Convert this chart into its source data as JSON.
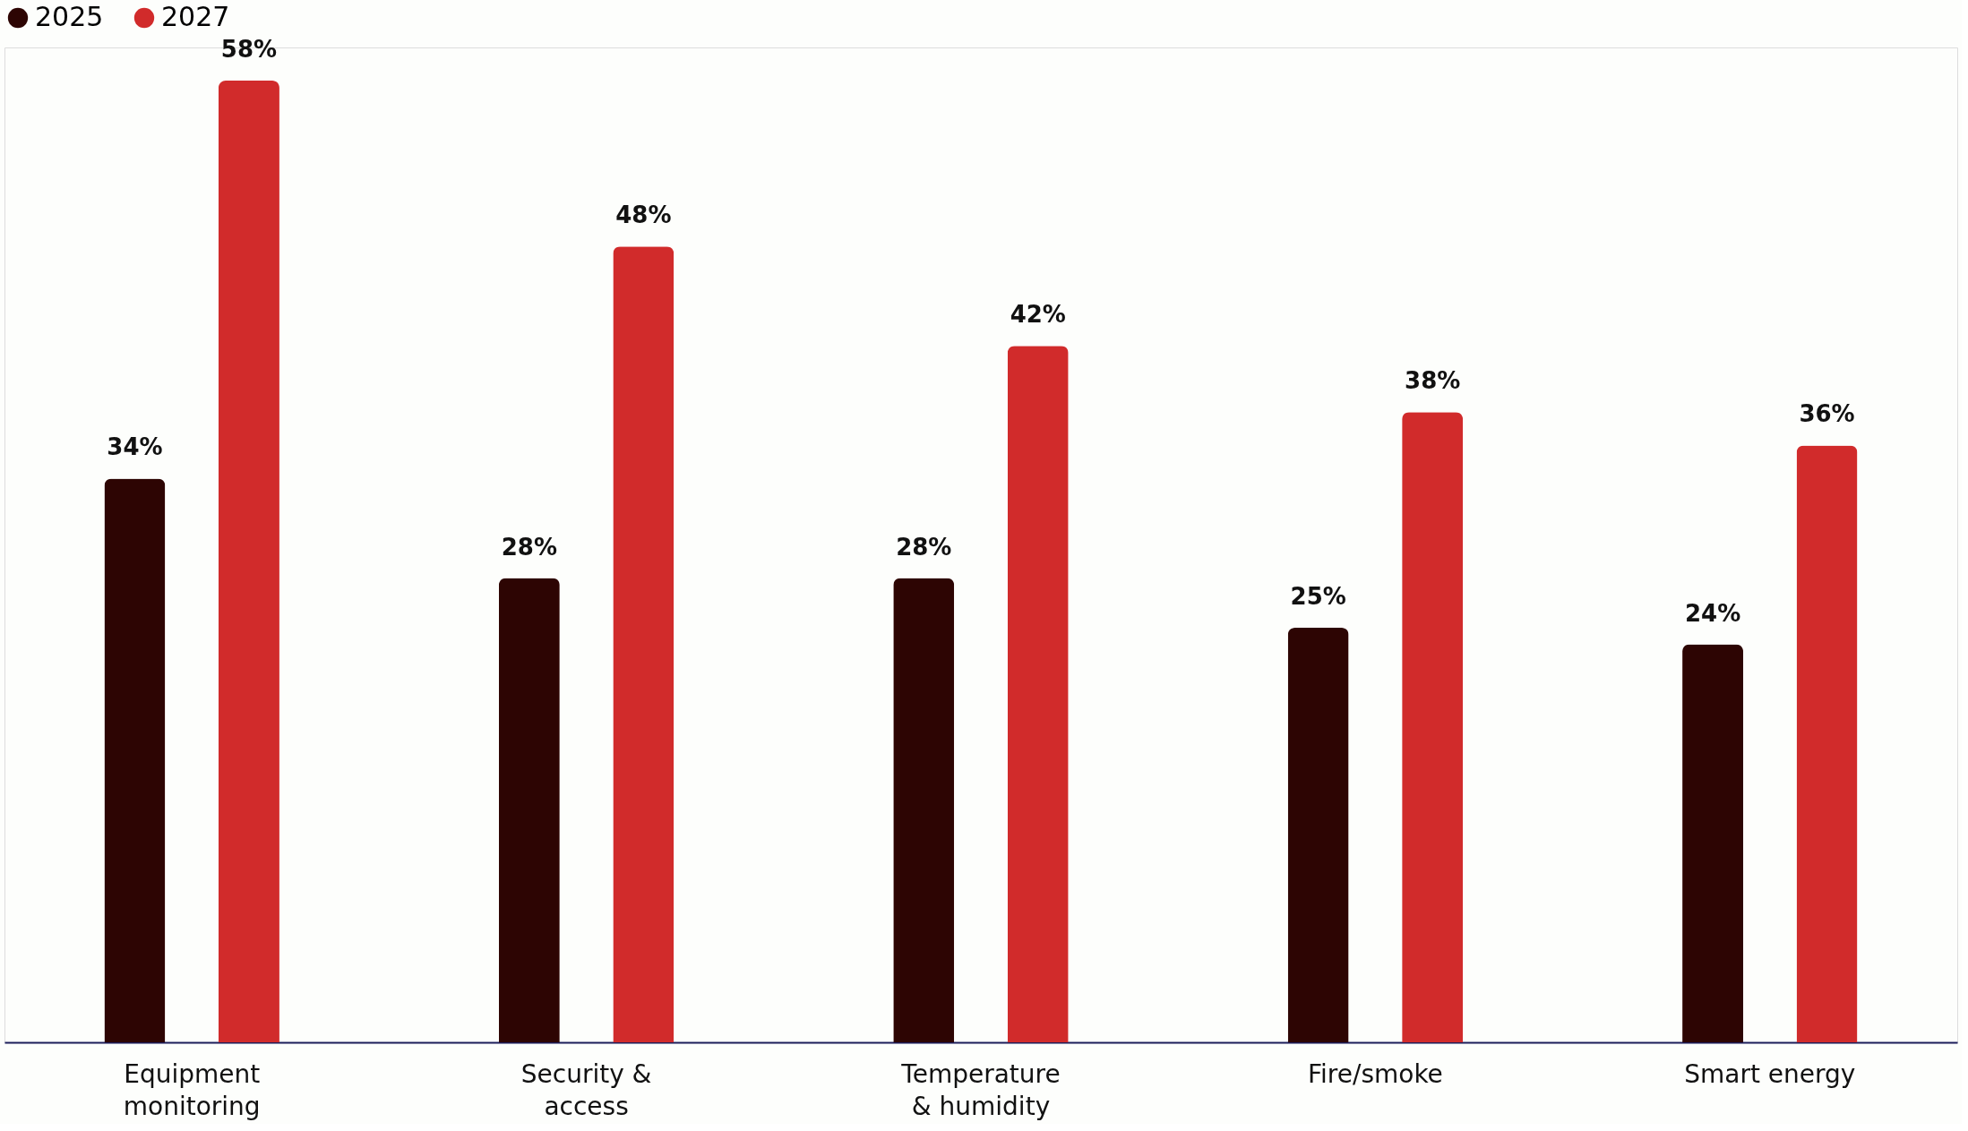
{
  "chart_data": {
    "type": "bar",
    "categories": [
      "Equipment\nmonitoring",
      "Security &\naccess",
      "Temperature\n& humidity",
      "Fire/smoke",
      "Smart energy"
    ],
    "series": [
      {
        "name": "2025",
        "color": "#2d0503",
        "values": [
          34,
          28,
          28,
          25,
          24
        ],
        "value_labels": [
          "34%",
          "28%",
          "28%",
          "25%",
          "24%"
        ]
      },
      {
        "name": "2027",
        "color": "#d12b2b",
        "values": [
          58,
          48,
          42,
          38,
          36
        ],
        "value_labels": [
          "58%",
          "48%",
          "42%",
          "38%",
          "36%"
        ]
      }
    ],
    "legend": "top",
    "grid": false
  }
}
